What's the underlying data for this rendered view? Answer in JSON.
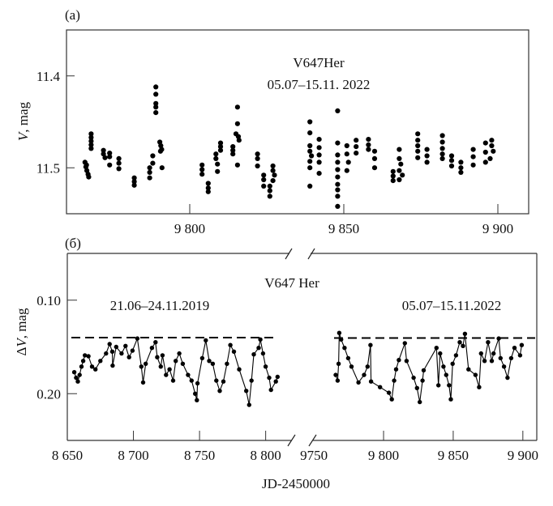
{
  "chart_data": [
    {
      "type": "scatter",
      "panel_label": "(a)",
      "title": "V647Her",
      "subtitle": "05.07–15.11. 2022",
      "xlabel": "",
      "ylabel": "V, mag",
      "ylabel_italic": "V",
      "ylabel_rest": ", mag",
      "xlim": [
        9760,
        9910
      ],
      "ylim": [
        11.55,
        11.35
      ],
      "y_inverted": true,
      "xticks": [
        9800,
        9850,
        9900
      ],
      "xtick_labels": [
        "9 800",
        "9 850",
        "9 900"
      ],
      "yticks": [
        11.4,
        11.5
      ],
      "ytick_labels": [
        "11.4",
        "11.5"
      ],
      "grid": false,
      "color": "#000000",
      "points": [
        [
          9766,
          11.494
        ],
        [
          9766.3,
          11.499
        ],
        [
          9766.6,
          11.503
        ],
        [
          9767,
          11.507
        ],
        [
          9767.2,
          11.51
        ],
        [
          9766.5,
          11.497
        ],
        [
          9768,
          11.463
        ],
        [
          9768,
          11.467
        ],
        [
          9768,
          11.471
        ],
        [
          9768,
          11.475
        ],
        [
          9768,
          11.479
        ],
        [
          9772,
          11.481
        ],
        [
          9772,
          11.485
        ],
        [
          9772.5,
          11.489
        ],
        [
          9774,
          11.484
        ],
        [
          9774,
          11.488
        ],
        [
          9774,
          11.497
        ],
        [
          9777,
          11.49
        ],
        [
          9777,
          11.495
        ],
        [
          9777,
          11.501
        ],
        [
          9782,
          11.511
        ],
        [
          9782,
          11.515
        ],
        [
          9782,
          11.519
        ],
        [
          9787,
          11.5
        ],
        [
          9787,
          11.505
        ],
        [
          9787,
          11.511
        ],
        [
          9788,
          11.487
        ],
        [
          9788,
          11.495
        ],
        [
          9789,
          11.412
        ],
        [
          9789,
          11.42
        ],
        [
          9789,
          11.43
        ],
        [
          9789,
          11.434
        ],
        [
          9789,
          11.44
        ],
        [
          9790.3,
          11.472
        ],
        [
          9790.6,
          11.476
        ],
        [
          9790.9,
          11.48
        ],
        [
          9790.5,
          11.482
        ],
        [
          9791,
          11.5
        ],
        [
          9804,
          11.497
        ],
        [
          9804,
          11.502
        ],
        [
          9804,
          11.507
        ],
        [
          9806,
          11.517
        ],
        [
          9806,
          11.522
        ],
        [
          9806,
          11.526
        ],
        [
          9808.5,
          11.485
        ],
        [
          9808.5,
          11.49
        ],
        [
          9809,
          11.496
        ],
        [
          9809,
          11.504
        ],
        [
          9810,
          11.473
        ],
        [
          9810,
          11.477
        ],
        [
          9810,
          11.481
        ],
        [
          9814,
          11.477
        ],
        [
          9814,
          11.481
        ],
        [
          9814,
          11.485
        ],
        [
          9815.5,
          11.434
        ],
        [
          9815.5,
          11.452
        ],
        [
          9815,
          11.463
        ],
        [
          9815.8,
          11.466
        ],
        [
          9816,
          11.47
        ],
        [
          9815.5,
          11.497
        ],
        [
          9822,
          11.485
        ],
        [
          9822,
          11.49
        ],
        [
          9822,
          11.498
        ],
        [
          9824,
          11.508
        ],
        [
          9824,
          11.513
        ],
        [
          9824,
          11.52
        ],
        [
          9826,
          11.52
        ],
        [
          9826,
          11.525
        ],
        [
          9826,
          11.531
        ],
        [
          9827,
          11.498
        ],
        [
          9827,
          11.503
        ],
        [
          9827.5,
          11.508
        ],
        [
          9827,
          11.514
        ],
        [
          9839,
          11.45
        ],
        [
          9839,
          11.462
        ],
        [
          9839,
          11.476
        ],
        [
          9839,
          11.482
        ],
        [
          9839.5,
          11.487
        ],
        [
          9839,
          11.493
        ],
        [
          9839,
          11.5
        ],
        [
          9839,
          11.52
        ],
        [
          9842,
          11.469
        ],
        [
          9842,
          11.478
        ],
        [
          9842,
          11.486
        ],
        [
          9842,
          11.494
        ],
        [
          9842,
          11.506
        ],
        [
          9848,
          11.438
        ],
        [
          9848,
          11.473
        ],
        [
          9848,
          11.486
        ],
        [
          9848,
          11.494
        ],
        [
          9848,
          11.502
        ],
        [
          9848,
          11.51
        ],
        [
          9848,
          11.518
        ],
        [
          9848,
          11.524
        ],
        [
          9848,
          11.531
        ],
        [
          9848,
          11.542
        ],
        [
          9851,
          11.476
        ],
        [
          9851,
          11.485
        ],
        [
          9851.5,
          11.494
        ],
        [
          9851,
          11.503
        ],
        [
          9854,
          11.47
        ],
        [
          9854,
          11.477
        ],
        [
          9854,
          11.484
        ],
        [
          9858,
          11.469
        ],
        [
          9858,
          11.475
        ],
        [
          9858,
          11.48
        ],
        [
          9860,
          11.482
        ],
        [
          9860,
          11.49
        ],
        [
          9860,
          11.5
        ],
        [
          9866,
          11.504
        ],
        [
          9866,
          11.509
        ],
        [
          9866,
          11.514
        ],
        [
          9868,
          11.48
        ],
        [
          9868,
          11.49
        ],
        [
          9868.5,
          11.496
        ],
        [
          9868,
          11.503
        ],
        [
          9869,
          11.508
        ],
        [
          9868,
          11.513
        ],
        [
          9874,
          11.463
        ],
        [
          9874,
          11.47
        ],
        [
          9874,
          11.476
        ],
        [
          9874,
          11.482
        ],
        [
          9874,
          11.489
        ],
        [
          9877,
          11.48
        ],
        [
          9877,
          11.487
        ],
        [
          9877,
          11.494
        ],
        [
          9882,
          11.465
        ],
        [
          9882,
          11.472
        ],
        [
          9882,
          11.479
        ],
        [
          9882,
          11.485
        ],
        [
          9882,
          11.49
        ],
        [
          9885,
          11.487
        ],
        [
          9885,
          11.492
        ],
        [
          9885,
          11.498
        ],
        [
          9888,
          11.494
        ],
        [
          9888,
          11.5
        ],
        [
          9888,
          11.505
        ],
        [
          9892,
          11.48
        ],
        [
          9892,
          11.488
        ],
        [
          9892,
          11.497
        ],
        [
          9896,
          11.473
        ],
        [
          9896,
          11.483
        ],
        [
          9896,
          11.494
        ],
        [
          9898,
          11.47
        ],
        [
          9898,
          11.476
        ],
        [
          9898.5,
          11.482
        ],
        [
          9897.5,
          11.49
        ]
      ]
    },
    {
      "type": "line",
      "panel_label": "(б)",
      "title": "V647 Her",
      "annotations": [
        "21.06–24.11.2019",
        "05.07–15.11.2022"
      ],
      "xlabel": "JD-2450000",
      "ylabel": "ΔV, mag",
      "ylabel_prefix": "Δ",
      "ylabel_italic": "V",
      "ylabel_rest": ", mag",
      "x_segments": [
        [
          8650,
          8818
        ],
        [
          9747,
          9910
        ]
      ],
      "x_break": true,
      "ylim": [
        0.25,
        0.05
      ],
      "y_inverted": true,
      "xticks": [
        8650,
        8700,
        8750,
        8800,
        9750,
        9800,
        9850,
        9900
      ],
      "xtick_labels": [
        "8 650",
        "8 700",
        "8 750",
        "8 800",
        "9750",
        "9 800",
        "9 850",
        "9 900"
      ],
      "yticks": [
        0.1,
        0.2
      ],
      "ytick_labels": [
        "0.10",
        "0.20"
      ],
      "grid": false,
      "reference_level": [
        0.14,
        0.1405
      ],
      "reference_style": "dashed",
      "color": "#000000",
      "series": [
        {
          "name": "2019",
          "points": [
            [
              8655.3,
              0.177
            ],
            [
              8656.7,
              0.183
            ],
            [
              8658,
              0.187
            ],
            [
              8659.3,
              0.18
            ],
            [
              8660.7,
              0.171
            ],
            [
              8662,
              0.165
            ],
            [
              8663.3,
              0.159
            ],
            [
              8666,
              0.16
            ],
            [
              8668.7,
              0.171
            ],
            [
              8671.3,
              0.174
            ],
            [
              8675,
              0.165
            ],
            [
              8679.3,
              0.157
            ],
            [
              8682,
              0.147
            ],
            [
              8684,
              0.155
            ],
            [
              8684.3,
              0.17
            ],
            [
              8687,
              0.15
            ],
            [
              8691,
              0.157
            ],
            [
              8694,
              0.149
            ],
            [
              8696.7,
              0.161
            ],
            [
              8699.3,
              0.154
            ],
            [
              8703,
              0.141
            ],
            [
              8706,
              0.171
            ],
            [
              8707.3,
              0.188
            ],
            [
              8709.3,
              0.168
            ],
            [
              8714,
              0.151
            ],
            [
              8716.7,
              0.145
            ],
            [
              8718,
              0.161
            ],
            [
              8720.7,
              0.171
            ],
            [
              8722,
              0.159
            ],
            [
              8724.7,
              0.18
            ],
            [
              8727.3,
              0.174
            ],
            [
              8730,
              0.186
            ],
            [
              8732,
              0.165
            ],
            [
              8734.7,
              0.157
            ],
            [
              8737.3,
              0.168
            ],
            [
              8741.3,
              0.18
            ],
            [
              8744,
              0.186
            ],
            [
              8746.7,
              0.2
            ],
            [
              8748,
              0.207
            ],
            [
              8748.5,
              0.189
            ],
            [
              8752,
              0.162
            ],
            [
              8754.7,
              0.143
            ],
            [
              8757.3,
              0.165
            ],
            [
              8760,
              0.168
            ],
            [
              8762.7,
              0.186
            ],
            [
              8765.3,
              0.197
            ],
            [
              8768,
              0.187
            ],
            [
              8770.7,
              0.168
            ],
            [
              8773.3,
              0.148
            ],
            [
              8776,
              0.155
            ],
            [
              8780,
              0.174
            ],
            [
              8785.3,
              0.197
            ],
            [
              8787.5,
              0.212
            ],
            [
              8789.3,
              0.186
            ],
            [
              8791,
              0.158
            ],
            [
              8794.7,
              0.151
            ],
            [
              8796,
              0.142
            ],
            [
              8798,
              0.157
            ],
            [
              8800,
              0.171
            ],
            [
              8802.7,
              0.183
            ],
            [
              8804,
              0.196
            ],
            [
              8807.7,
              0.187
            ],
            [
              8809,
              0.182
            ]
          ]
        },
        {
          "name": "2022",
          "points": [
            [
              9765.6,
              0.18
            ],
            [
              9767,
              0.186
            ],
            [
              9767.7,
              0.168
            ],
            [
              9768.2,
              0.135
            ],
            [
              9769.5,
              0.142
            ],
            [
              9772,
              0.151
            ],
            [
              9774.6,
              0.162
            ],
            [
              9777,
              0.171
            ],
            [
              9782,
              0.188
            ],
            [
              9786,
              0.18
            ],
            [
              9788.5,
              0.171
            ],
            [
              9790.6,
              0.148
            ],
            [
              9791,
              0.187
            ],
            [
              9797.5,
              0.193
            ],
            [
              9803.8,
              0.199
            ],
            [
              9805.9,
              0.206
            ],
            [
              9807.6,
              0.186
            ],
            [
              9809,
              0.174
            ],
            [
              9811,
              0.164
            ],
            [
              9815.3,
              0.146
            ],
            [
              9816.5,
              0.165
            ],
            [
              9821.6,
              0.183
            ],
            [
              9824,
              0.194
            ],
            [
              9826,
              0.209
            ],
            [
              9828,
              0.186
            ],
            [
              9828.8,
              0.175
            ],
            [
              9838,
              0.151
            ],
            [
              9839.4,
              0.191
            ],
            [
              9840.6,
              0.157
            ],
            [
              9843,
              0.171
            ],
            [
              9845,
              0.18
            ],
            [
              9847,
              0.191
            ],
            [
              9848.3,
              0.206
            ],
            [
              9849.6,
              0.168
            ],
            [
              9852,
              0.159
            ],
            [
              9854.7,
              0.145
            ],
            [
              9857,
              0.149
            ],
            [
              9858.4,
              0.136
            ],
            [
              9861,
              0.174
            ],
            [
              9866,
              0.18
            ],
            [
              9868.6,
              0.193
            ],
            [
              9870,
              0.157
            ],
            [
              9872.5,
              0.165
            ],
            [
              9875,
              0.145
            ],
            [
              9877.7,
              0.165
            ],
            [
              9879,
              0.157
            ],
            [
              9882.7,
              0.141
            ],
            [
              9884,
              0.162
            ],
            [
              9886.5,
              0.171
            ],
            [
              9889,
              0.183
            ],
            [
              9891.6,
              0.162
            ],
            [
              9894,
              0.151
            ],
            [
              9898,
              0.159
            ],
            [
              9899.2,
              0.148
            ]
          ]
        }
      ]
    }
  ]
}
